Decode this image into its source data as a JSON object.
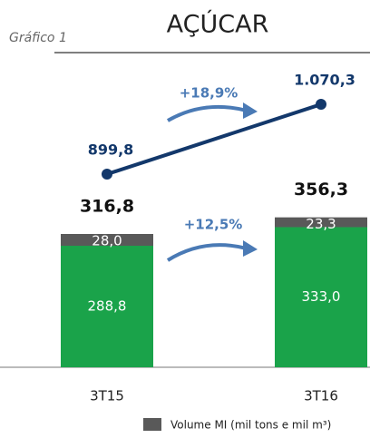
{
  "chart_data": {
    "type": "stacked_bar",
    "title": "AÇÚCAR",
    "subtitle": "Gráfico 1",
    "categories": [
      "3T15",
      "3T16"
    ],
    "series": [
      {
        "color": "#1aa34a",
        "values": [
          288.8,
          333.0
        ],
        "value_labels": [
          "288,8",
          "333,0"
        ]
      },
      {
        "name": "Volume MI (mil tons e mil m³)",
        "color": "#595959",
        "values": [
          28.0,
          23.3
        ],
        "value_labels": [
          "28,0",
          "23,3"
        ]
      }
    ],
    "totals": [
      316.8,
      356.3
    ],
    "total_labels": [
      "316,8",
      "356,3"
    ],
    "line": {
      "color": "#13386b",
      "values": [
        899.8,
        1070.3
      ],
      "value_labels": [
        "899,8",
        "1.070,3"
      ]
    },
    "annotations": [
      "+18,9%",
      "+12,5%"
    ]
  }
}
